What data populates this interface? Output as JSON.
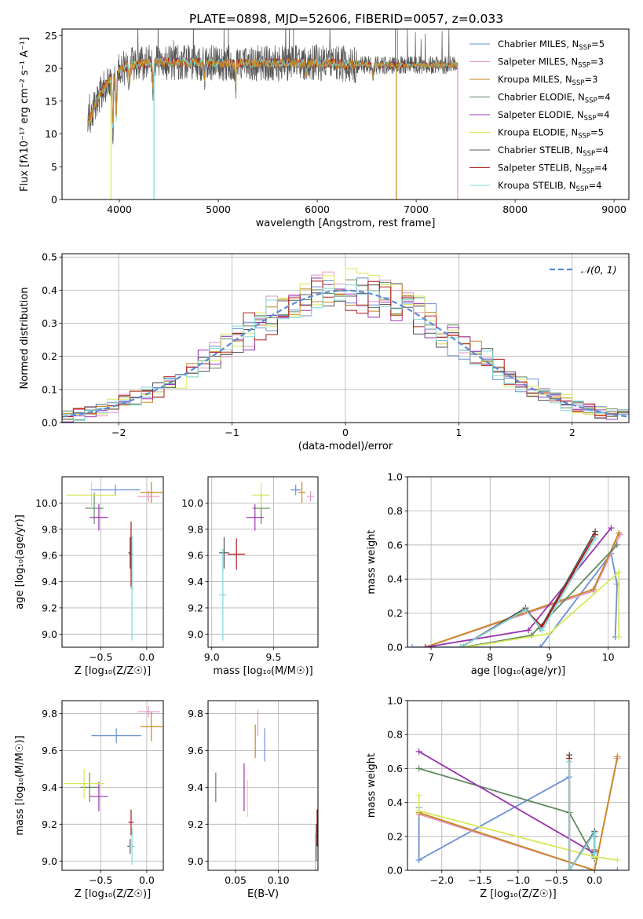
{
  "figure_title": "PLATE=0898, MJD=52606, FIBERID=0057, z=0.033",
  "models": [
    {
      "name": "Chabrier MILES",
      "n_ssp": "5",
      "color": "#6b8fd6"
    },
    {
      "name": "Salpeter MILES",
      "n_ssp": "3",
      "color": "#e493c8"
    },
    {
      "name": "Kroupa MILES",
      "n_ssp": "3",
      "color": "#c8861c"
    },
    {
      "name": "Chabrier ELODIE",
      "n_ssp": "4",
      "color": "#5f8a5f"
    },
    {
      "name": "Salpeter ELODIE",
      "n_ssp": "4",
      "color": "#9b33b0"
    },
    {
      "name": "Kroupa ELODIE",
      "n_ssp": "5",
      "color": "#d8e85a"
    },
    {
      "name": "Chabrier STELIB",
      "n_ssp": "4",
      "color": "#555555"
    },
    {
      "name": "Salpeter STELIB",
      "n_ssp": "4",
      "color": "#b01a1a"
    },
    {
      "name": "Kroupa STELIB",
      "n_ssp": "4",
      "color": "#7fd8d8"
    }
  ],
  "labels": {
    "nssp_prefix": "N",
    "nssp_sub": "SSP",
    "normal_legend": "𝒩(0, 1)"
  },
  "chart_data": [
    {
      "id": "spectrum",
      "type": "line",
      "xlabel": "wavelength [Angstrom, rest frame]",
      "ylabel": "Flux [fλ10⁻¹⁷ erg cm⁻² s⁻¹ A⁻¹]",
      "xlim": [
        3420,
        9150
      ],
      "ylim": [
        0,
        26
      ],
      "xticks": [
        4000,
        5000,
        6000,
        7000,
        8000,
        9000
      ],
      "yticks": [
        0,
        5,
        10,
        15,
        20,
        25
      ],
      "grid": false,
      "legend": "top-right",
      "data_range": [
        3680,
        7420
      ],
      "continuum_knots": [
        [
          3680,
          11.5
        ],
        [
          3800,
          16
        ],
        [
          3950,
          19.5
        ],
        [
          4100,
          20.5
        ],
        [
          4500,
          21
        ],
        [
          5000,
          20.8
        ],
        [
          5500,
          20.8
        ],
        [
          6000,
          20.8
        ],
        [
          6500,
          20.5
        ],
        [
          7000,
          20.5
        ],
        [
          7420,
          20.5
        ]
      ],
      "absorption": [
        [
          3934,
          1.0
        ],
        [
          3968,
          0.8
        ],
        [
          4102,
          0.3
        ],
        [
          4340,
          0.35
        ],
        [
          4861,
          0.25
        ],
        [
          5175,
          0.3
        ],
        [
          5892,
          0.2
        ],
        [
          6563,
          0.2
        ]
      ],
      "dropouts": [
        [
          3915,
          0
        ],
        [
          4350,
          0
        ],
        [
          6800,
          0
        ],
        [
          7420,
          0
        ]
      ]
    },
    {
      "id": "residuals",
      "type": "histogram",
      "xlabel": "(data-model)/error",
      "ylabel": "Normed distribution",
      "xlim": [
        -2.5,
        2.5
      ],
      "ylim": [
        0,
        0.51
      ],
      "xticks": [
        -2,
        -1,
        0,
        1,
        2
      ],
      "yticks": [
        0.0,
        0.1,
        0.2,
        0.3,
        0.4,
        0.5
      ],
      "grid": true,
      "legend": "top-right",
      "bin_width": 0.1,
      "curve": "normal(0,1)"
    },
    {
      "id": "age_vs_Z",
      "type": "errorbar",
      "xlabel": "Z [log₁₀(Z/Z☉)]",
      "ylabel": "age  [log₁₀(age/yr)]",
      "xlim": [
        -0.92,
        0.18
      ],
      "ylim": [
        8.9,
        10.2
      ],
      "xticks": [
        -0.5,
        0.0
      ],
      "yticks": [
        9.0,
        9.2,
        9.4,
        9.6,
        9.8,
        10.0
      ],
      "grid": true,
      "points": [
        {
          "model": 0,
          "x": -0.34,
          "xerr": 0.27,
          "y": 10.1,
          "yerr": 0.04
        },
        {
          "model": 1,
          "x": 0.02,
          "xerr": 0.12,
          "y": 10.05,
          "yerr": 0.04
        },
        {
          "model": 2,
          "x": 0.05,
          "xerr": 0.12,
          "y": 10.08,
          "yerr": 0.08
        },
        {
          "model": 3,
          "x": -0.57,
          "xerr": 0.1,
          "y": 9.96,
          "yerr": 0.12
        },
        {
          "model": 4,
          "x": -0.52,
          "xerr": 0.1,
          "y": 9.89,
          "yerr": 0.1
        },
        {
          "model": 5,
          "x": -0.6,
          "xerr": 0.27,
          "y": 10.06,
          "yerr": 0.1
        },
        {
          "model": 6,
          "x": -0.18,
          "xerr": 0.02,
          "y": 9.62,
          "yerr": 0.12
        },
        {
          "model": 7,
          "x": -0.17,
          "xerr": 0.02,
          "y": 9.61,
          "yerr": 0.25
        },
        {
          "model": 8,
          "x": -0.16,
          "xerr": 0.02,
          "y": 9.35,
          "yerr": 0.4
        }
      ]
    },
    {
      "id": "age_vs_mass",
      "type": "errorbar",
      "xlabel": "mass [log₁₀(M/M☉)]",
      "ylabel": "",
      "xlim": [
        8.97,
        9.86
      ],
      "ylim": [
        8.9,
        10.2
      ],
      "xticks": [
        9.0,
        9.5
      ],
      "yticks": [
        9.0,
        9.2,
        9.4,
        9.6,
        9.8,
        10.0
      ],
      "grid": true,
      "points": [
        {
          "model": 0,
          "x": 9.68,
          "xerr": 0.04,
          "y": 10.1,
          "yerr": 0.04
        },
        {
          "model": 1,
          "x": 9.8,
          "xerr": 0.03,
          "y": 10.05,
          "yerr": 0.04
        },
        {
          "model": 2,
          "x": 9.73,
          "xerr": 0.03,
          "y": 10.08,
          "yerr": 0.08
        },
        {
          "model": 3,
          "x": 9.4,
          "xerr": 0.07,
          "y": 9.96,
          "yerr": 0.12
        },
        {
          "model": 4,
          "x": 9.35,
          "xerr": 0.07,
          "y": 9.89,
          "yerr": 0.1
        },
        {
          "model": 5,
          "x": 9.4,
          "xerr": 0.07,
          "y": 10.06,
          "yerr": 0.1
        },
        {
          "model": 6,
          "x": 9.1,
          "xerr": 0.04,
          "y": 9.62,
          "yerr": 0.12
        },
        {
          "model": 7,
          "x": 9.2,
          "xerr": 0.07,
          "y": 9.61,
          "yerr": 0.12
        },
        {
          "model": 8,
          "x": 9.09,
          "xerr": 0.03,
          "y": 9.3,
          "yerr": 0.35
        }
      ]
    },
    {
      "id": "weight_vs_age",
      "type": "line",
      "xlabel": "age  [log₁₀(age/yr)]",
      "ylabel": "mass weight",
      "xlim": [
        6.6,
        10.35
      ],
      "ylim": [
        0,
        1
      ],
      "xticks": [
        7,
        8,
        9,
        10
      ],
      "yticks": [
        0.0,
        0.2,
        0.4,
        0.6,
        0.8,
        1.0
      ],
      "grid": true,
      "series": [
        {
          "model": 0,
          "x": [
            6.68,
            8.85,
            10.05,
            10.15,
            10.12
          ],
          "y": [
            0.0,
            0.0,
            0.55,
            0.37,
            0.06
          ]
        },
        {
          "model": 1,
          "x": [
            6.9,
            9.75,
            10.2
          ],
          "y": [
            0.0,
            0.33,
            0.66
          ]
        },
        {
          "model": 2,
          "x": [
            6.9,
            9.75,
            10.18
          ],
          "y": [
            0.0,
            0.34,
            0.67
          ]
        },
        {
          "model": 3,
          "x": [
            7.55,
            8.7,
            10.15
          ],
          "y": [
            0.0,
            0.07,
            0.6
          ]
        },
        {
          "model": 4,
          "x": [
            6.9,
            8.65,
            10.05
          ],
          "y": [
            0.0,
            0.1,
            0.7
          ]
        },
        {
          "model": 5,
          "x": [
            7.6,
            9.0,
            10.18,
            10.18
          ],
          "y": [
            0.0,
            0.08,
            0.44,
            0.06
          ]
        },
        {
          "model": 6,
          "x": [
            7.5,
            8.6,
            8.85,
            9.78
          ],
          "y": [
            0.0,
            0.23,
            0.11,
            0.68
          ]
        },
        {
          "model": 7,
          "x": [
            7.5,
            8.6,
            8.88,
            9.78
          ],
          "y": [
            0.0,
            0.22,
            0.12,
            0.66
          ]
        },
        {
          "model": 8,
          "x": [
            7.5,
            8.6,
            8.88,
            9.78
          ],
          "y": [
            0.0,
            0.22,
            0.1,
            0.64
          ]
        }
      ]
    },
    {
      "id": "mass_vs_Z",
      "type": "errorbar",
      "xlabel": "Z [log₁₀(Z/Z☉)]",
      "ylabel": "mass [log₁₀(M/M☉)]",
      "xlim": [
        -0.92,
        0.18
      ],
      "ylim": [
        8.95,
        9.87
      ],
      "xticks": [
        -0.5,
        0.0
      ],
      "yticks": [
        9.0,
        9.2,
        9.4,
        9.6,
        9.8
      ],
      "grid": true,
      "points": [
        {
          "model": 0,
          "x": -0.33,
          "xerr": 0.27,
          "y": 9.68,
          "yerr": 0.04
        },
        {
          "model": 1,
          "x": 0.02,
          "xerr": 0.12,
          "y": 9.81,
          "yerr": 0.03
        },
        {
          "model": 2,
          "x": 0.05,
          "xerr": 0.12,
          "y": 9.73,
          "yerr": 0.08
        },
        {
          "model": 3,
          "x": -0.62,
          "xerr": 0.1,
          "y": 9.4,
          "yerr": 0.08
        },
        {
          "model": 4,
          "x": -0.52,
          "xerr": 0.1,
          "y": 9.35,
          "yerr": 0.08
        },
        {
          "model": 5,
          "x": -0.68,
          "xerr": 0.22,
          "y": 9.42,
          "yerr": 0.08
        },
        {
          "model": 6,
          "x": -0.18,
          "xerr": 0.03,
          "y": 9.08,
          "yerr": 0.04
        },
        {
          "model": 7,
          "x": -0.17,
          "xerr": 0.03,
          "y": 9.21,
          "yerr": 0.07
        },
        {
          "model": 8,
          "x": -0.16,
          "xerr": 0.03,
          "y": 9.08,
          "yerr": 0.1
        }
      ]
    },
    {
      "id": "mass_vs_ebv",
      "type": "errorbar",
      "xlabel": "E(B-V)",
      "ylabel": "",
      "xlim": [
        0.018,
        0.146
      ],
      "ylim": [
        8.95,
        9.87
      ],
      "xticks": [
        0.05,
        0.1
      ],
      "yticks": [
        9.0,
        9.2,
        9.4,
        9.6,
        9.8
      ],
      "grid": true,
      "points": [
        {
          "model": 0,
          "x": 0.084,
          "xerr": 0,
          "y": 9.63,
          "yerr": 0.09
        },
        {
          "model": 1,
          "x": 0.076,
          "xerr": 0,
          "y": 9.75,
          "yerr": 0.07
        },
        {
          "model": 2,
          "x": 0.073,
          "xerr": 0,
          "y": 9.65,
          "yerr": 0.09
        },
        {
          "model": 3,
          "x": 0.027,
          "xerr": 0,
          "y": 9.4,
          "yerr": 0.08
        },
        {
          "model": 4,
          "x": 0.06,
          "xerr": 0,
          "y": 9.4,
          "yerr": 0.13
        },
        {
          "model": 5,
          "x": 0.064,
          "xerr": 0,
          "y": 9.34,
          "yerr": 0.1
        },
        {
          "model": 6,
          "x": 0.144,
          "xerr": 0,
          "y": 9.1,
          "yerr": 0.1
        },
        {
          "model": 7,
          "x": 0.145,
          "xerr": 0,
          "y": 9.18,
          "yerr": 0.1
        },
        {
          "model": 8,
          "x": 0.143,
          "xerr": 0,
          "y": 9.05,
          "yerr": 0.1
        }
      ]
    },
    {
      "id": "weight_vs_Z",
      "type": "line",
      "xlabel": "Z [log₁₀(Z/Z☉)]",
      "ylabel": "mass weight",
      "xlim": [
        -2.45,
        0.45
      ],
      "ylim": [
        0,
        1
      ],
      "xticks": [
        -2.0,
        -1.5,
        -1.0,
        -0.5,
        0.0
      ],
      "yticks": [
        0.0,
        0.2,
        0.4,
        0.6,
        0.8,
        1.0
      ],
      "grid": true,
      "series": [
        {
          "model": 0,
          "x": [
            -2.3,
            -2.3,
            -0.33,
            -0.33,
            0.0,
            0.0,
            0.3
          ],
          "y": [
            0.37,
            0.06,
            0.55,
            0.0,
            0.0,
            0.0,
            0.0
          ]
        },
        {
          "model": 1,
          "x": [
            -2.3,
            0.0,
            0.3
          ],
          "y": [
            0.33,
            0.0,
            0.66
          ]
        },
        {
          "model": 2,
          "x": [
            -2.3,
            0.0,
            0.3
          ],
          "y": [
            0.34,
            0.0,
            0.67
          ]
        },
        {
          "model": 3,
          "x": [
            -2.3,
            -0.33,
            0.0
          ],
          "y": [
            0.6,
            0.34,
            0.07
          ]
        },
        {
          "model": 4,
          "x": [
            -2.3,
            0.0,
            0.0
          ],
          "y": [
            0.7,
            0.1,
            0.2
          ]
        },
        {
          "model": 5,
          "x": [
            -2.3,
            -2.3,
            0.0,
            0.3
          ],
          "y": [
            0.44,
            0.35,
            0.08,
            0.06
          ]
        },
        {
          "model": 6,
          "x": [
            -0.33,
            -0.33,
            0.0,
            0.0
          ],
          "y": [
            0.68,
            0.0,
            0.23,
            0.11
          ]
        },
        {
          "model": 7,
          "x": [
            -0.33,
            -0.33,
            0.0,
            0.0
          ],
          "y": [
            0.66,
            0.0,
            0.22,
            0.12
          ]
        },
        {
          "model": 8,
          "x": [
            -0.33,
            -0.33,
            0.0,
            0.0
          ],
          "y": [
            0.64,
            0.0,
            0.22,
            0.1
          ]
        }
      ]
    }
  ]
}
